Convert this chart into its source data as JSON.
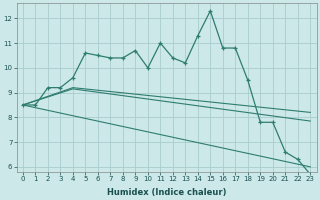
{
  "title": "",
  "xlabel": "Humidex (Indice chaleur)",
  "bg_color": "#cce8e8",
  "grid_color": "#aacccc",
  "line_color": "#2e7d6e",
  "xlim": [
    -0.5,
    23.5
  ],
  "ylim": [
    5.8,
    12.6
  ],
  "yticks": [
    6,
    7,
    8,
    9,
    10,
    11,
    12
  ],
  "xticks": [
    0,
    1,
    2,
    3,
    4,
    5,
    6,
    7,
    8,
    9,
    10,
    11,
    12,
    13,
    14,
    15,
    16,
    17,
    18,
    19,
    20,
    21,
    22,
    23
  ],
  "main_x": [
    0,
    1,
    2,
    3,
    4,
    5,
    6,
    7,
    8,
    9,
    10,
    11,
    12,
    13,
    14,
    15,
    16,
    17,
    18,
    19,
    20,
    21,
    22,
    23
  ],
  "main_y": [
    8.5,
    8.5,
    9.2,
    9.2,
    9.6,
    10.6,
    10.5,
    10.4,
    10.4,
    10.7,
    10.0,
    11.0,
    10.4,
    10.2,
    11.3,
    12.3,
    10.8,
    10.8,
    9.5,
    7.8,
    7.8,
    6.6,
    6.3,
    5.7
  ],
  "line2_x": [
    0,
    4,
    23
  ],
  "line2_y": [
    8.5,
    9.2,
    8.2
  ],
  "line3_x": [
    0,
    4,
    23
  ],
  "line3_y": [
    8.5,
    9.15,
    7.85
  ],
  "line4_x": [
    0,
    23
  ],
  "line4_y": [
    8.5,
    6.0
  ]
}
